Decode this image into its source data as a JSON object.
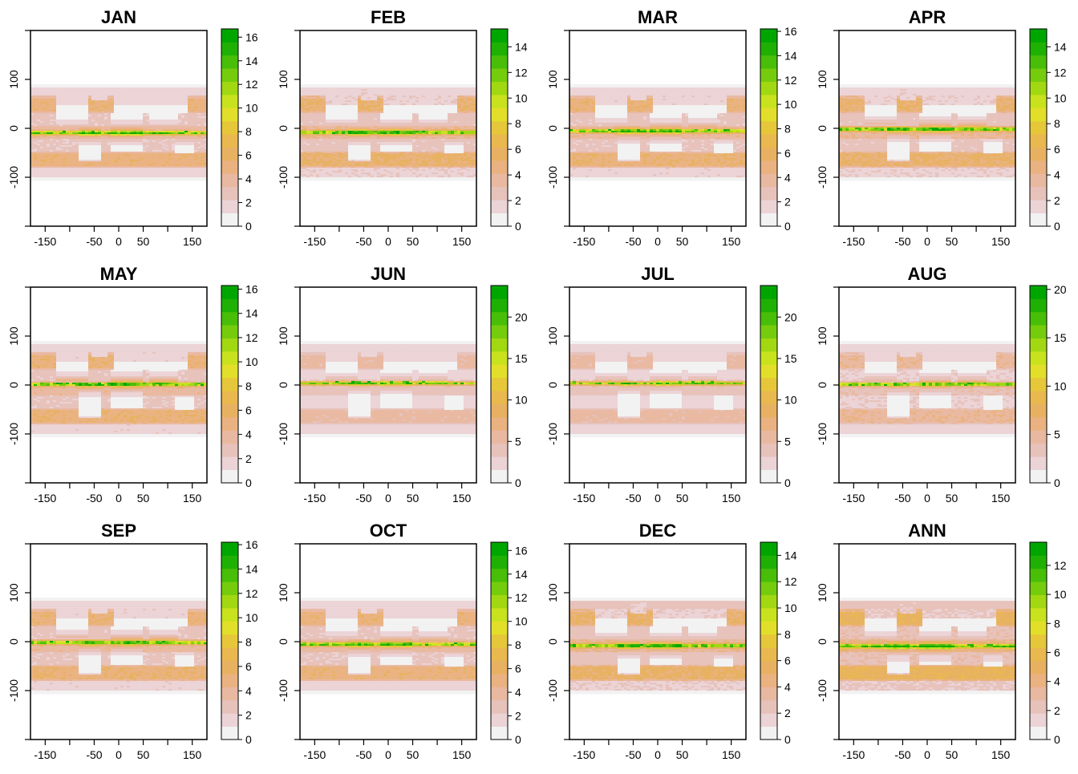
{
  "palette": [
    "#F2F2F2",
    "#EBD3D6",
    "#E7C2BB",
    "#E9B8A0",
    "#EAB280",
    "#E8B162",
    "#E9B84E",
    "#E6C73A",
    "#E2DF2A",
    "#C8E21D",
    "#A1D812",
    "#75CC0D",
    "#48BE08",
    "#1FB004",
    "#00A600"
  ],
  "chart_data": [
    {
      "type": "heatmap",
      "title": "JAN",
      "xlim": [
        -180,
        180
      ],
      "ylim": [
        -200,
        200
      ],
      "x_ticks": [
        "-150",
        "-50",
        "0",
        "50",
        "150"
      ],
      "y_ticks": [
        "100",
        "0",
        "-100"
      ],
      "colorbar_ticks": [
        "0",
        "2",
        "4",
        "6",
        "8",
        "10",
        "12",
        "14",
        "16"
      ],
      "value_range": [
        0,
        16.7
      ]
    },
    {
      "type": "heatmap",
      "title": "FEB",
      "xlim": [
        -180,
        180
      ],
      "ylim": [
        -200,
        200
      ],
      "x_ticks": [
        "-150",
        "-50",
        "0",
        "50",
        "150"
      ],
      "y_ticks": [
        "100",
        "0",
        "-100"
      ],
      "colorbar_ticks": [
        "0",
        "2",
        "4",
        "6",
        "8",
        "10",
        "12",
        "14"
      ],
      "value_range": [
        0,
        15.4
      ]
    },
    {
      "type": "heatmap",
      "title": "MAR",
      "xlim": [
        -180,
        180
      ],
      "ylim": [
        -200,
        200
      ],
      "x_ticks": [
        "-150",
        "-50",
        "0",
        "50",
        "150"
      ],
      "y_ticks": [
        "100",
        "0",
        "-100"
      ],
      "colorbar_ticks": [
        "0",
        "2",
        "4",
        "6",
        "8",
        "10",
        "12",
        "14",
        "16"
      ],
      "value_range": [
        0,
        16.2
      ]
    },
    {
      "type": "heatmap",
      "title": "APR",
      "xlim": [
        -180,
        180
      ],
      "ylim": [
        -200,
        200
      ],
      "x_ticks": [
        "-150",
        "-50",
        "0",
        "50",
        "150"
      ],
      "y_ticks": [
        "100",
        "0",
        "-100"
      ],
      "colorbar_ticks": [
        "0",
        "2",
        "4",
        "6",
        "8",
        "10",
        "12",
        "14"
      ],
      "value_range": [
        0,
        15.4
      ]
    },
    {
      "type": "heatmap",
      "title": "MAY",
      "xlim": [
        -180,
        180
      ],
      "ylim": [
        -200,
        200
      ],
      "x_ticks": [
        "-150",
        "-50",
        "0",
        "50",
        "150"
      ],
      "y_ticks": [
        "100",
        "0",
        "-100"
      ],
      "colorbar_ticks": [
        "0",
        "2",
        "4",
        "6",
        "8",
        "10",
        "12",
        "14",
        "16"
      ],
      "value_range": [
        0,
        16.3
      ]
    },
    {
      "type": "heatmap",
      "title": "JUN",
      "xlim": [
        -180,
        180
      ],
      "ylim": [
        -200,
        200
      ],
      "x_ticks": [
        "-150",
        "-50",
        "0",
        "50",
        "150"
      ],
      "y_ticks": [
        "100",
        "0",
        "-100"
      ],
      "colorbar_ticks": [
        "0",
        "5",
        "10",
        "15",
        "20"
      ],
      "value_range": [
        0,
        23.8
      ]
    },
    {
      "type": "heatmap",
      "title": "JUL",
      "xlim": [
        -180,
        180
      ],
      "ylim": [
        -200,
        200
      ],
      "x_ticks": [
        "-150",
        "-50",
        "0",
        "50",
        "150"
      ],
      "y_ticks": [
        "100",
        "0",
        "-100"
      ],
      "colorbar_ticks": [
        "0",
        "5",
        "10",
        "15",
        "20"
      ],
      "value_range": [
        0,
        23.8
      ]
    },
    {
      "type": "heatmap",
      "title": "AUG",
      "xlim": [
        -180,
        180
      ],
      "ylim": [
        -200,
        200
      ],
      "x_ticks": [
        "-150",
        "-50",
        "0",
        "50",
        "150"
      ],
      "y_ticks": [
        "100",
        "0",
        "-100"
      ],
      "colorbar_ticks": [
        "0",
        "5",
        "10",
        "15",
        "20"
      ],
      "value_range": [
        0,
        20.4
      ]
    },
    {
      "type": "heatmap",
      "title": "SEP",
      "xlim": [
        -180,
        180
      ],
      "ylim": [
        -200,
        200
      ],
      "x_ticks": [
        "-150",
        "-50",
        "0",
        "50",
        "150"
      ],
      "y_ticks": [
        "100",
        "0",
        "-100"
      ],
      "colorbar_ticks": [
        "0",
        "2",
        "4",
        "6",
        "8",
        "10",
        "12",
        "14",
        "16"
      ],
      "value_range": [
        0,
        16.2
      ]
    },
    {
      "type": "heatmap",
      "title": "OCT",
      "xlim": [
        -180,
        180
      ],
      "ylim": [
        -200,
        200
      ],
      "x_ticks": [
        "-150",
        "-50",
        "0",
        "50",
        "150"
      ],
      "y_ticks": [
        "100",
        "0",
        "-100"
      ],
      "colorbar_ticks": [
        "0",
        "2",
        "4",
        "6",
        "8",
        "10",
        "12",
        "14",
        "16"
      ],
      "value_range": [
        0,
        16.7
      ]
    },
    {
      "type": "heatmap",
      "title": "DEC",
      "xlim": [
        -180,
        180
      ],
      "ylim": [
        -200,
        200
      ],
      "x_ticks": [
        "-150",
        "-50",
        "0",
        "50",
        "150"
      ],
      "y_ticks": [
        "100",
        "0",
        "-100"
      ],
      "colorbar_ticks": [
        "0",
        "2",
        "4",
        "6",
        "8",
        "10",
        "12",
        "14"
      ],
      "value_range": [
        0,
        15.0
      ]
    },
    {
      "type": "heatmap",
      "title": "ANN",
      "xlim": [
        -180,
        180
      ],
      "ylim": [
        -200,
        200
      ],
      "x_ticks": [
        "-150",
        "-50",
        "0",
        "50",
        "150"
      ],
      "y_ticks": [
        "100",
        "0",
        "-100"
      ],
      "colorbar_ticks": [
        "0",
        "2",
        "4",
        "6",
        "8",
        "10",
        "12"
      ],
      "value_range": [
        0,
        13.6
      ]
    }
  ]
}
